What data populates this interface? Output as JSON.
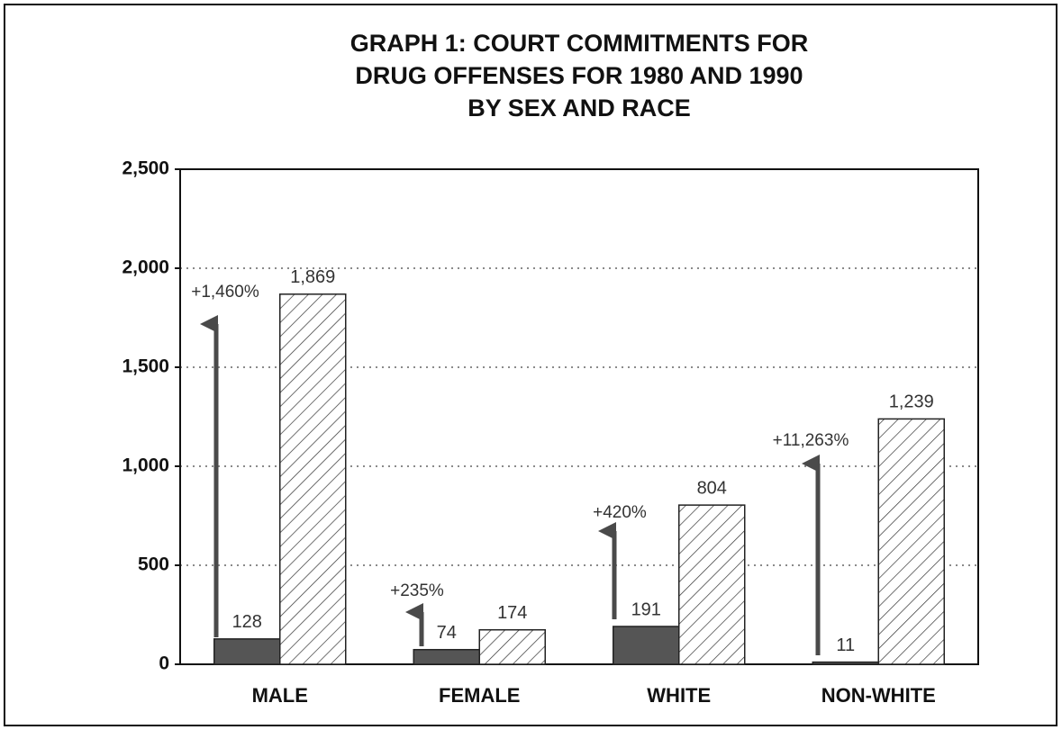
{
  "chart_data": {
    "type": "bar",
    "title": [
      "GRAPH 1: COURT COMMITMENTS FOR",
      "DRUG OFFENSES FOR 1980 AND 1990",
      "BY SEX AND RACE"
    ],
    "categories": [
      "MALE",
      "FEMALE",
      "WHITE",
      "NON-WHITE"
    ],
    "series": [
      {
        "color": "#555555",
        "values": [
          128,
          74,
          191,
          11
        ]
      },
      {
        "color": "#333333",
        "values": [
          1869,
          174,
          804,
          1239
        ],
        "value_labels": [
          "1,869",
          "174",
          "804",
          "1,239"
        ]
      }
    ],
    "annotations": [
      "+1,460%",
      "+235%",
      "+420%",
      "+11,263%"
    ],
    "ylim": [
      0,
      2500
    ],
    "yticks": [
      0,
      500,
      {
        "value": 1000,
        "label": "1,000"
      },
      {
        "value": 1500,
        "label": "1,500"
      },
      {
        "value": 2000,
        "label": "2,000"
      },
      {
        "value": 2500,
        "label": "2,500"
      }
    ],
    "grid": true
  }
}
